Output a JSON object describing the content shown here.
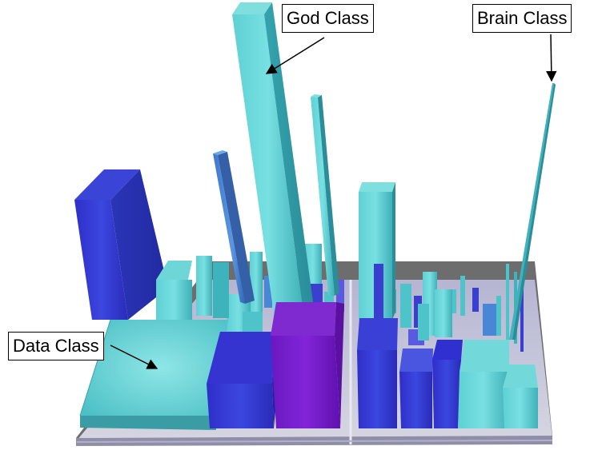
{
  "labels": {
    "god_class": "God Class",
    "brain_class": "Brain Class",
    "data_class": "Data Class"
  },
  "colors": {
    "cyan": "#4ec3c9",
    "blue": "#3a3fd0",
    "violet": "#7a1fc8",
    "steel_blue": "#4a86d6",
    "platform": "#c8c8d4",
    "backdrop": "#6a6a6a"
  }
}
